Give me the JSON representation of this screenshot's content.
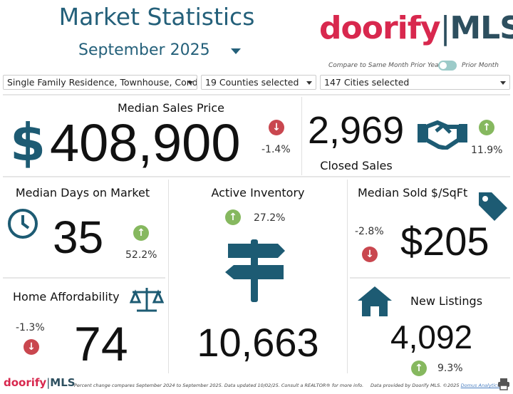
{
  "header": {
    "title": "Market Statistics",
    "month": "September 2025"
  },
  "logo": {
    "brand": "doorify",
    "suffix": "MLS"
  },
  "compare": {
    "left_label": "Compare to Same Month Prior Year",
    "right_label": "Prior Month",
    "toggle_on": false
  },
  "filters": {
    "property_types": "Single Family Residence, Townhouse, Condo",
    "counties": "19 Counties selected",
    "cities": "147 Cities selected"
  },
  "metrics": {
    "median_sales_price": {
      "label": "Median Sales Price",
      "value": "408,900",
      "change": "-1.4%",
      "direction": "down"
    },
    "closed_sales": {
      "label": "Closed Sales",
      "value": "2,969",
      "change": "11.9%",
      "direction": "up"
    },
    "median_dom": {
      "label": "Median Days on Market",
      "value": "35",
      "change": "52.2%",
      "direction": "up"
    },
    "active_inventory": {
      "label": "Active Inventory",
      "value": "10,663",
      "change": "27.2%",
      "direction": "up"
    },
    "median_sold_sqft": {
      "label": "Median Sold $/SqFt",
      "value": "$205",
      "change": "-2.8%",
      "direction": "down"
    },
    "home_affordability": {
      "label": "Home Affordability",
      "value": "74",
      "change": "-1.3%",
      "direction": "down"
    },
    "new_listings": {
      "label": "New Listings",
      "value": "4,092",
      "change": "9.3%",
      "direction": "up"
    }
  },
  "footer": {
    "note": "Percent change compares September 2024 to September 2025.  Data updated 10/02/25.  Consult a REALTOR® for more info.",
    "provided": "Data provided by Doorify MLS. ©2025 ",
    "link": "Domus Analytics®"
  },
  "colors": {
    "title": "#24607a",
    "brand_red": "#d8284e",
    "brand_dark": "#2d4f5f",
    "icon": "#1d5b73",
    "up": "#86b85f",
    "down": "#c9474f"
  }
}
